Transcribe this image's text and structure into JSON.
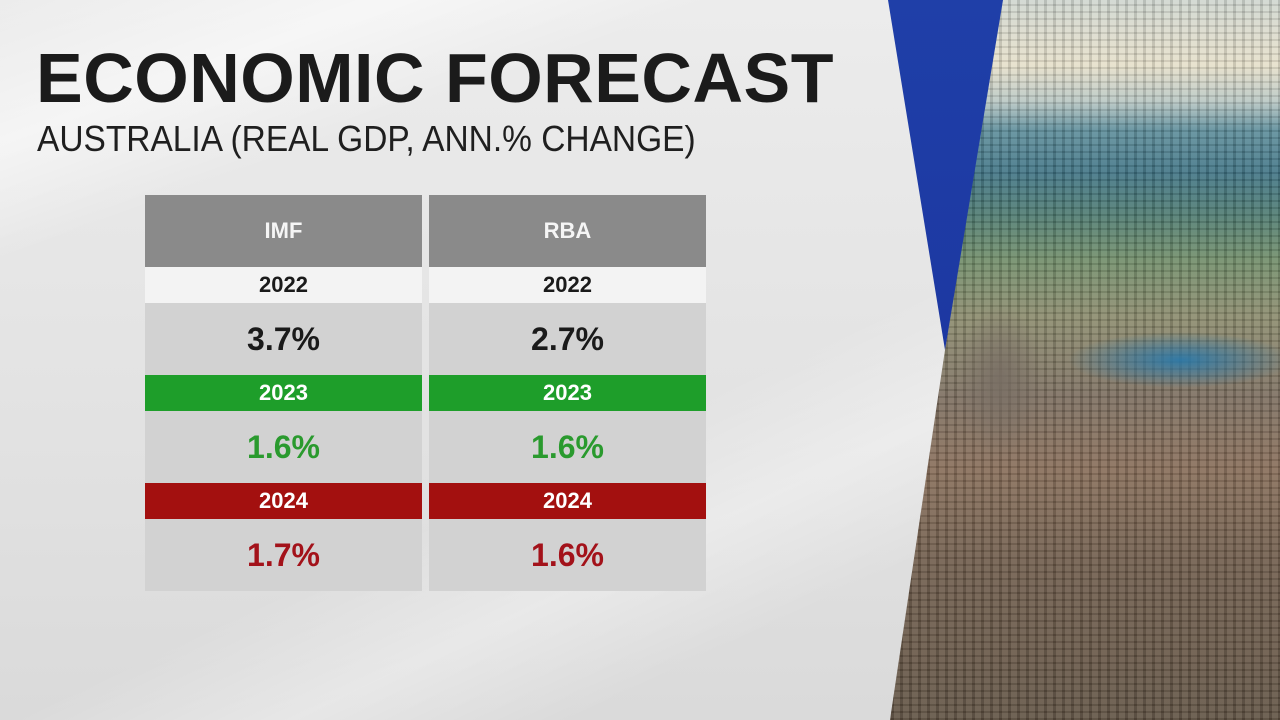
{
  "title": "ECONOMIC FORECAST",
  "subtitle": "AUSTRALIA (REAL GDP, ANN.% CHANGE)",
  "colors": {
    "neutral_band": "#f3f3f3",
    "green_band": "#1e9e2a",
    "red_band": "#a3100f",
    "green_text": "#2a9a2e",
    "red_text": "#a3121a",
    "black_text": "#1a1a1a"
  },
  "chart_data": {
    "type": "table",
    "title": "ECONOMIC FORECAST",
    "subtitle": "AUSTRALIA (REAL GDP, ANN.% CHANGE)",
    "columns": [
      "IMF",
      "RBA"
    ],
    "years": [
      "2022",
      "2023",
      "2024"
    ],
    "series": [
      {
        "name": "IMF",
        "values": [
          3.7,
          1.6,
          1.7
        ],
        "labels": [
          "3.7%",
          "1.6%",
          "1.7%"
        ]
      },
      {
        "name": "RBA",
        "values": [
          2.7,
          1.6,
          1.6
        ],
        "labels": [
          "2.7%",
          "1.6%",
          "1.6%"
        ]
      }
    ]
  }
}
